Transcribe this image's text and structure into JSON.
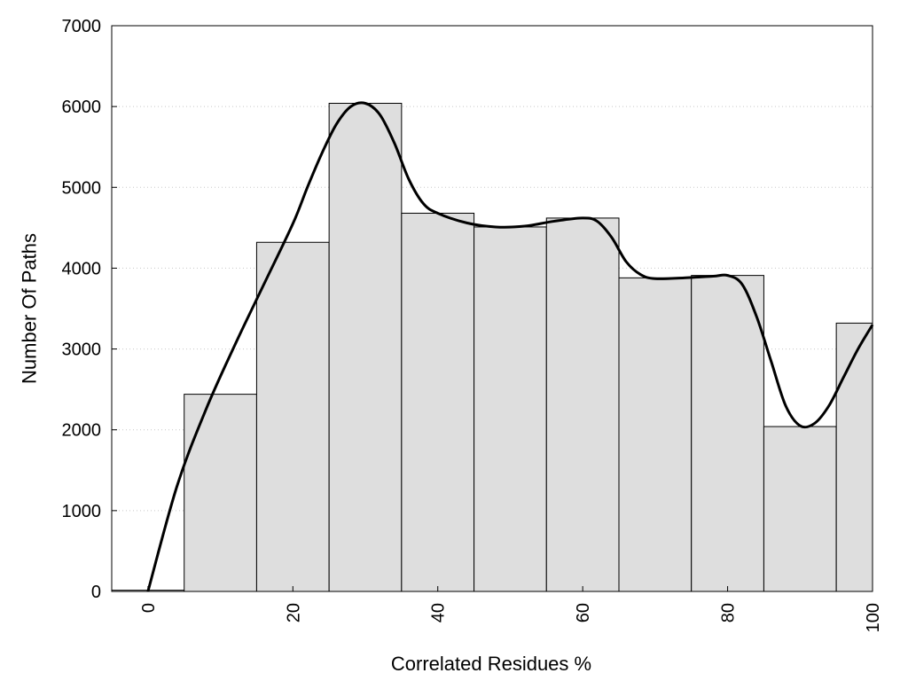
{
  "chart_data": {
    "type": "bar",
    "xlabel": "Correlated Residues %",
    "ylabel": "Number Of Paths",
    "xlim": [
      -5,
      100
    ],
    "ylim": [
      0,
      7000
    ],
    "x_ticks": [
      0,
      20,
      40,
      60,
      80,
      100
    ],
    "y_ticks": [
      0,
      1000,
      2000,
      3000,
      4000,
      5000,
      6000,
      7000
    ],
    "grid": "horizontal-dotted",
    "bin_width": 10,
    "bins": [
      {
        "center": 0,
        "value": 15
      },
      {
        "center": 10,
        "value": 2440
      },
      {
        "center": 20,
        "value": 4320
      },
      {
        "center": 30,
        "value": 6040
      },
      {
        "center": 40,
        "value": 4680
      },
      {
        "center": 50,
        "value": 4510
      },
      {
        "center": 60,
        "value": 4620
      },
      {
        "center": 70,
        "value": 3880
      },
      {
        "center": 80,
        "value": 3910
      },
      {
        "center": 90,
        "value": 2040
      },
      {
        "center": 100,
        "value": 3320
      }
    ],
    "smooth_curve": {
      "x": [
        0,
        4,
        8,
        12,
        16,
        20,
        22,
        24,
        26,
        28,
        30,
        32,
        34,
        36,
        38,
        40,
        44,
        48,
        52,
        56,
        60,
        62,
        64,
        66,
        68,
        70,
        74,
        78,
        80,
        82,
        84,
        86,
        88,
        90,
        92,
        94,
        96,
        98,
        100
      ],
      "y": [
        0,
        1300,
        2250,
        3050,
        3800,
        4550,
        5000,
        5420,
        5780,
        6000,
        6040,
        5900,
        5550,
        5100,
        4800,
        4680,
        4560,
        4510,
        4520,
        4580,
        4620,
        4580,
        4380,
        4080,
        3920,
        3870,
        3880,
        3900,
        3910,
        3800,
        3400,
        2850,
        2300,
        2050,
        2080,
        2300,
        2650,
        3000,
        3300
      ]
    },
    "colors": {
      "bar_fill": "#dedede",
      "bar_stroke": "#000000",
      "curve": "#000000",
      "grid": "#c8c8c8"
    }
  }
}
